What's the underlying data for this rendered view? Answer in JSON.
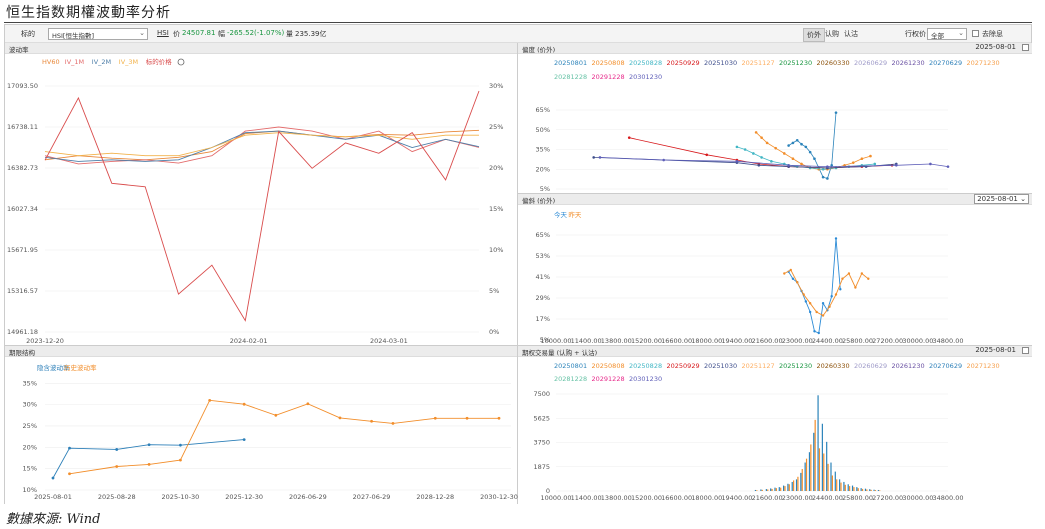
{
  "page": {
    "title": "恒生指数期權波動率分析",
    "source": "數據來源: Wind"
  },
  "toolbar": {
    "underlying_label": "标的",
    "underlying_value": "HSI[恒生指數]",
    "code": "HSI",
    "price_label": "价",
    "price_value": "24507.81",
    "change_label": "幅",
    "change_value": "-265.52(-1.07%)",
    "volume_label": "量",
    "volume_value": "235.39亿",
    "view_tabs": [
      "价外",
      "认购",
      "认沽"
    ],
    "active_view_tab": 0,
    "strike_label": "行权价",
    "strike_value": "全部",
    "exclude_label": "去除息"
  },
  "colors": {
    "hv60": "#e8883a",
    "iv1m": "#e36c6c",
    "iv2m": "#4d7ea8",
    "iv3m": "#f2b24b",
    "underlying": "#d94c4c",
    "implied": "#2c7fb8",
    "historical": "#f28e2b",
    "today": "#2c8bd6",
    "yesterday": "#f28e2b",
    "maturities": [
      "#2b83ba",
      "#f28e2b",
      "#41b6c4",
      "#d7191c",
      "#3f4f8c",
      "#fdae61",
      "#1a9641",
      "#8c510a",
      "#9e9ac8",
      "#6a51a3",
      "#2c7fb8",
      "#f6a04d",
      "#66c2a5",
      "#e7298a",
      "#5e5eb8"
    ]
  },
  "chart_data": [
    {
      "id": "volatility",
      "type": "line",
      "panel_title": "波动率",
      "legend": [
        "HV60",
        "IV_1M",
        "IV_2M",
        "IV_3M",
        "标的价格"
      ],
      "x": [
        "2023-12-20",
        "2023-12-27",
        "2024-01-03",
        "2024-01-10",
        "2024-01-17",
        "2024-01-24",
        "2024-01-31",
        "2024-02-07",
        "2024-02-14",
        "2024-02-21",
        "2024-02-28",
        "2024-03-06",
        "2024-03-13",
        "2024-03-20"
      ],
      "x_ticks": [
        "2023-12-20",
        "2024-02-01",
        "2024-03-01"
      ],
      "y_left_ticks": [
        "17093.50",
        "16738.11",
        "16382.73",
        "16027.34",
        "15671.95",
        "15316.57",
        "14961.18"
      ],
      "y_left_range": [
        14961.18,
        17093.5
      ],
      "y_right_ticks": [
        "30%",
        "25%",
        "20%",
        "15%",
        "10%",
        "5%",
        "0%"
      ],
      "y_right_range": [
        0,
        30
      ],
      "series": [
        {
          "name": "HV60",
          "axis": "right",
          "values": [
            21.0,
            21.5,
            21.2,
            21.0,
            21.3,
            22.0,
            24.2,
            24.5,
            24.0,
            23.8,
            24.1,
            24.0,
            24.4,
            24.6
          ]
        },
        {
          "name": "IV_1M",
          "axis": "right",
          "values": [
            21.5,
            20.5,
            20.8,
            21.0,
            20.6,
            21.5,
            24.5,
            25.0,
            24.5,
            23.5,
            24.5,
            22.0,
            23.5,
            22.5
          ]
        },
        {
          "name": "IV_2M",
          "axis": "right",
          "values": [
            21.3,
            20.8,
            21.0,
            20.8,
            21.0,
            22.5,
            24.3,
            24.5,
            24.0,
            23.5,
            24.0,
            22.5,
            23.5,
            22.6
          ]
        },
        {
          "name": "IV_3M",
          "axis": "right",
          "values": [
            22.0,
            21.5,
            21.8,
            21.5,
            21.5,
            22.5,
            24.0,
            24.3,
            24.0,
            23.8,
            24.0,
            23.5,
            24.0,
            24.0
          ]
        },
        {
          "name": "标的价格",
          "axis": "left",
          "values": [
            16450,
            16990,
            16250,
            16220,
            15290,
            15540,
            15060,
            16700,
            16380,
            16600,
            16510,
            16690,
            16280,
            17050
          ]
        }
      ]
    },
    {
      "id": "skew",
      "type": "scatter",
      "panel_title": "偏度 (价外)",
      "date": "2025-08-01",
      "legend": [
        "20250801",
        "20250808",
        "20250828",
        "20250929",
        "20251030",
        "20251127",
        "20251230",
        "20260330",
        "20260629",
        "20261230",
        "20270629",
        "20271230",
        "20281228",
        "20291228",
        "20301230"
      ],
      "x_ticks": [
        "10000.00",
        "11400.00",
        "13800.00",
        "15200.00",
        "16600.00",
        "18000.00",
        "19400.00",
        "21600.00",
        "23000.00",
        "24400.00",
        "25800.00",
        "27200.00",
        "30000.00",
        "34800.00"
      ],
      "y_ticks": [
        "65%",
        "50%",
        "35%",
        "20%",
        "5%"
      ],
      "y_range": [
        5,
        65
      ],
      "series": [
        {
          "name": "20250801",
          "x": [
            22600,
            22800,
            23000,
            23200,
            23400,
            23600,
            23800,
            24000,
            24200,
            24400,
            24600,
            24800
          ],
          "values": [
            38,
            40,
            42,
            39,
            37,
            33,
            28,
            21,
            14,
            13,
            23,
            63
          ]
        },
        {
          "name": "20250808",
          "x": [
            20800,
            21200,
            21600,
            22000,
            22400,
            22800,
            23200,
            23600,
            24000,
            24400,
            24800,
            25200,
            25600,
            26000,
            26400
          ],
          "values": [
            48,
            44,
            40,
            36,
            32,
            28,
            24,
            21,
            20,
            20,
            21,
            23,
            25,
            28,
            30
          ]
        },
        {
          "name": "20250828",
          "x": [
            19400,
            20000,
            20600,
            21200,
            21800,
            22400,
            23000,
            23600,
            24200,
            24800,
            25400,
            26000,
            26600
          ],
          "values": [
            37,
            35,
            32,
            29,
            26,
            24,
            22,
            21,
            20,
            21,
            22,
            23,
            24
          ]
        },
        {
          "name": "20250929",
          "x": [
            14400,
            18000,
            19400,
            21000,
            22600,
            24400,
            26000,
            27600
          ],
          "values": [
            44,
            31,
            27,
            24,
            22,
            21,
            22,
            23
          ]
        },
        {
          "name": "20251030",
          "x": [
            12000,
            19400,
            21000,
            22600,
            24400,
            26200,
            28000
          ],
          "values": [
            29,
            25,
            23,
            22,
            21,
            22,
            24
          ]
        },
        {
          "name": "20301230",
          "x": [
            12500,
            16000,
            19400,
            22600,
            24400,
            28000,
            32000,
            35500
          ],
          "values": [
            29,
            27,
            26,
            23,
            22,
            23,
            24,
            22
          ]
        }
      ]
    },
    {
      "id": "smile",
      "type": "line",
      "panel_title": "偏斜 (价外)",
      "date": "2025-08-01",
      "legend": [
        "今天",
        "昨天"
      ],
      "x_ticks": [
        "10000.00",
        "11400.00",
        "13800.00",
        "15200.00",
        "16600.00",
        "18000.00",
        "19400.00",
        "21600.00",
        "23000.00",
        "24400.00",
        "25800.00",
        "27200.00",
        "30000.00",
        "34800.00"
      ],
      "y_ticks": [
        "65%",
        "53%",
        "41%",
        "29%",
        "17%",
        "5%"
      ],
      "y_range": [
        5,
        65
      ],
      "series": [
        {
          "name": "今天",
          "x": [
            22600,
            22800,
            23000,
            23200,
            23400,
            23600,
            23800,
            24000,
            24200,
            24400,
            24600,
            24800,
            25000
          ],
          "values": [
            44,
            40,
            38,
            33,
            27,
            21,
            10,
            9,
            26,
            22,
            30,
            63,
            34
          ]
        },
        {
          "name": "昨天",
          "x": [
            22400,
            22700,
            23000,
            23300,
            23600,
            23900,
            24200,
            24500,
            24800,
            25100,
            25400,
            25700,
            26000,
            26300
          ],
          "values": [
            43,
            45,
            38,
            31,
            26,
            21,
            19,
            24,
            31,
            40,
            43,
            35,
            43,
            40
          ]
        }
      ]
    },
    {
      "id": "term_structure",
      "type": "line",
      "panel_title": "期限结构",
      "legend": [
        "隐含波动率",
        "历史波动率"
      ],
      "x_ticks": [
        "2025-08-01",
        "2025-08-28",
        "2025-10-30",
        "2025-12-30",
        "2026-06-29",
        "2027-06-29",
        "2028-12-28",
        "2030-12-30"
      ],
      "y_ticks": [
        "35%",
        "30%",
        "25%",
        "20%",
        "15%",
        "10%"
      ],
      "y_range": [
        10,
        36
      ],
      "series": [
        {
          "name": "隐含波动率",
          "x": [
            "2025-08-01",
            "2025-08-08",
            "2025-08-28",
            "2025-09-29",
            "2025-10-30",
            "2025-12-30"
          ],
          "values": [
            12.8,
            19.8,
            19.5,
            20.6,
            20.5,
            21.8
          ]
        },
        {
          "name": "历史波动率",
          "x": [
            "2025-08-08",
            "2025-08-28",
            "2025-09-29",
            "2025-10-30",
            "2025-11-27",
            "2025-12-30",
            "2026-03-30",
            "2026-06-29",
            "2026-12-30",
            "2027-06-29",
            "2027-12-30",
            "2028-12-28",
            "2029-12-28",
            "2030-12-30"
          ],
          "values": [
            13.8,
            15.5,
            16.0,
            17.0,
            31.0,
            30.1,
            27.5,
            30.2,
            26.9,
            26.1,
            25.6,
            26.8,
            26.8,
            26.8
          ]
        }
      ]
    },
    {
      "id": "volume",
      "type": "bar",
      "panel_title": "期权交易量 (认购 + 认沽)",
      "date": "2025-08-01",
      "legend": [
        "20250801",
        "20250808",
        "20250828",
        "20250929",
        "20251030",
        "20251127",
        "20251230",
        "20260330",
        "20260629",
        "20261230",
        "20270629",
        "20271230",
        "20281228",
        "20291228",
        "20301230"
      ],
      "x_ticks": [
        "10000.00",
        "11400.00",
        "13800.00",
        "15200.00",
        "16600.00",
        "18000.00",
        "19400.00",
        "21600.00",
        "23000.00",
        "24400.00",
        "25800.00",
        "27200.00",
        "30000.00",
        "34800.00"
      ],
      "y_ticks": [
        "7500",
        "5625",
        "3750",
        "1875",
        "0"
      ],
      "y_range": [
        0,
        7500
      ],
      "categories": [
        20800,
        21200,
        21600,
        21800,
        22000,
        22200,
        22400,
        22600,
        22800,
        23000,
        23200,
        23400,
        23600,
        23800,
        24000,
        24200,
        24400,
        24600,
        24800,
        25000,
        25200,
        25400,
        25600,
        25800,
        26000,
        26200,
        26400,
        26600,
        26800
      ],
      "series": [
        {
          "name": "20250801",
          "values": [
            80,
            120,
            150,
            200,
            260,
            300,
            420,
            560,
            700,
            900,
            1400,
            2200,
            3000,
            4500,
            7400,
            5200,
            3800,
            2200,
            1500,
            900,
            700,
            520,
            420,
            300,
            220,
            180,
            140,
            100,
            80
          ]
        },
        {
          "name": "20250808",
          "values": [
            60,
            90,
            120,
            160,
            220,
            260,
            380,
            520,
            820,
            1100,
            1700,
            2500,
            3600,
            5500,
            3300,
            2900,
            2100,
            1200,
            900,
            650,
            480,
            380,
            300,
            220,
            160,
            120,
            90,
            70,
            50
          ]
        }
      ]
    }
  ]
}
